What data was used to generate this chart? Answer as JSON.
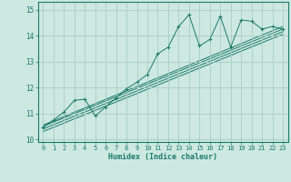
{
  "title": "",
  "xlabel": "Humidex (Indice chaleur)",
  "xlim": [
    -0.5,
    23.5
  ],
  "ylim": [
    9.9,
    15.3
  ],
  "yticks": [
    10,
    11,
    12,
    13,
    14,
    15
  ],
  "xticks": [
    0,
    1,
    2,
    3,
    4,
    5,
    6,
    7,
    8,
    9,
    10,
    11,
    12,
    13,
    14,
    15,
    16,
    17,
    18,
    19,
    20,
    21,
    22,
    23
  ],
  "bg_color": "#cce8e0",
  "grid_color": "#aaccc4",
  "line_color": "#1a7a6a",
  "scatter_points": {
    "x": [
      0,
      1,
      2,
      3,
      4,
      5,
      6,
      7,
      8,
      9,
      10,
      11,
      12,
      13,
      14,
      15,
      16,
      17,
      18,
      19,
      20,
      21,
      22,
      23
    ],
    "y": [
      10.45,
      10.75,
      11.05,
      11.5,
      11.55,
      10.9,
      11.25,
      11.6,
      11.95,
      12.2,
      12.5,
      13.3,
      13.55,
      14.35,
      14.8,
      13.6,
      13.85,
      14.75,
      13.55,
      14.6,
      14.55,
      14.25,
      14.35,
      14.25
    ]
  },
  "trend_lines": [
    {
      "x": [
        0,
        23
      ],
      "y": [
        10.55,
        14.35
      ]
    },
    {
      "x": [
        0,
        23
      ],
      "y": [
        10.5,
        14.25
      ]
    },
    {
      "x": [
        0,
        23
      ],
      "y": [
        10.4,
        14.15
      ]
    },
    {
      "x": [
        0,
        23
      ],
      "y": [
        10.3,
        14.05
      ]
    }
  ],
  "tick_fontsize": 5.0,
  "xlabel_fontsize": 6.0
}
